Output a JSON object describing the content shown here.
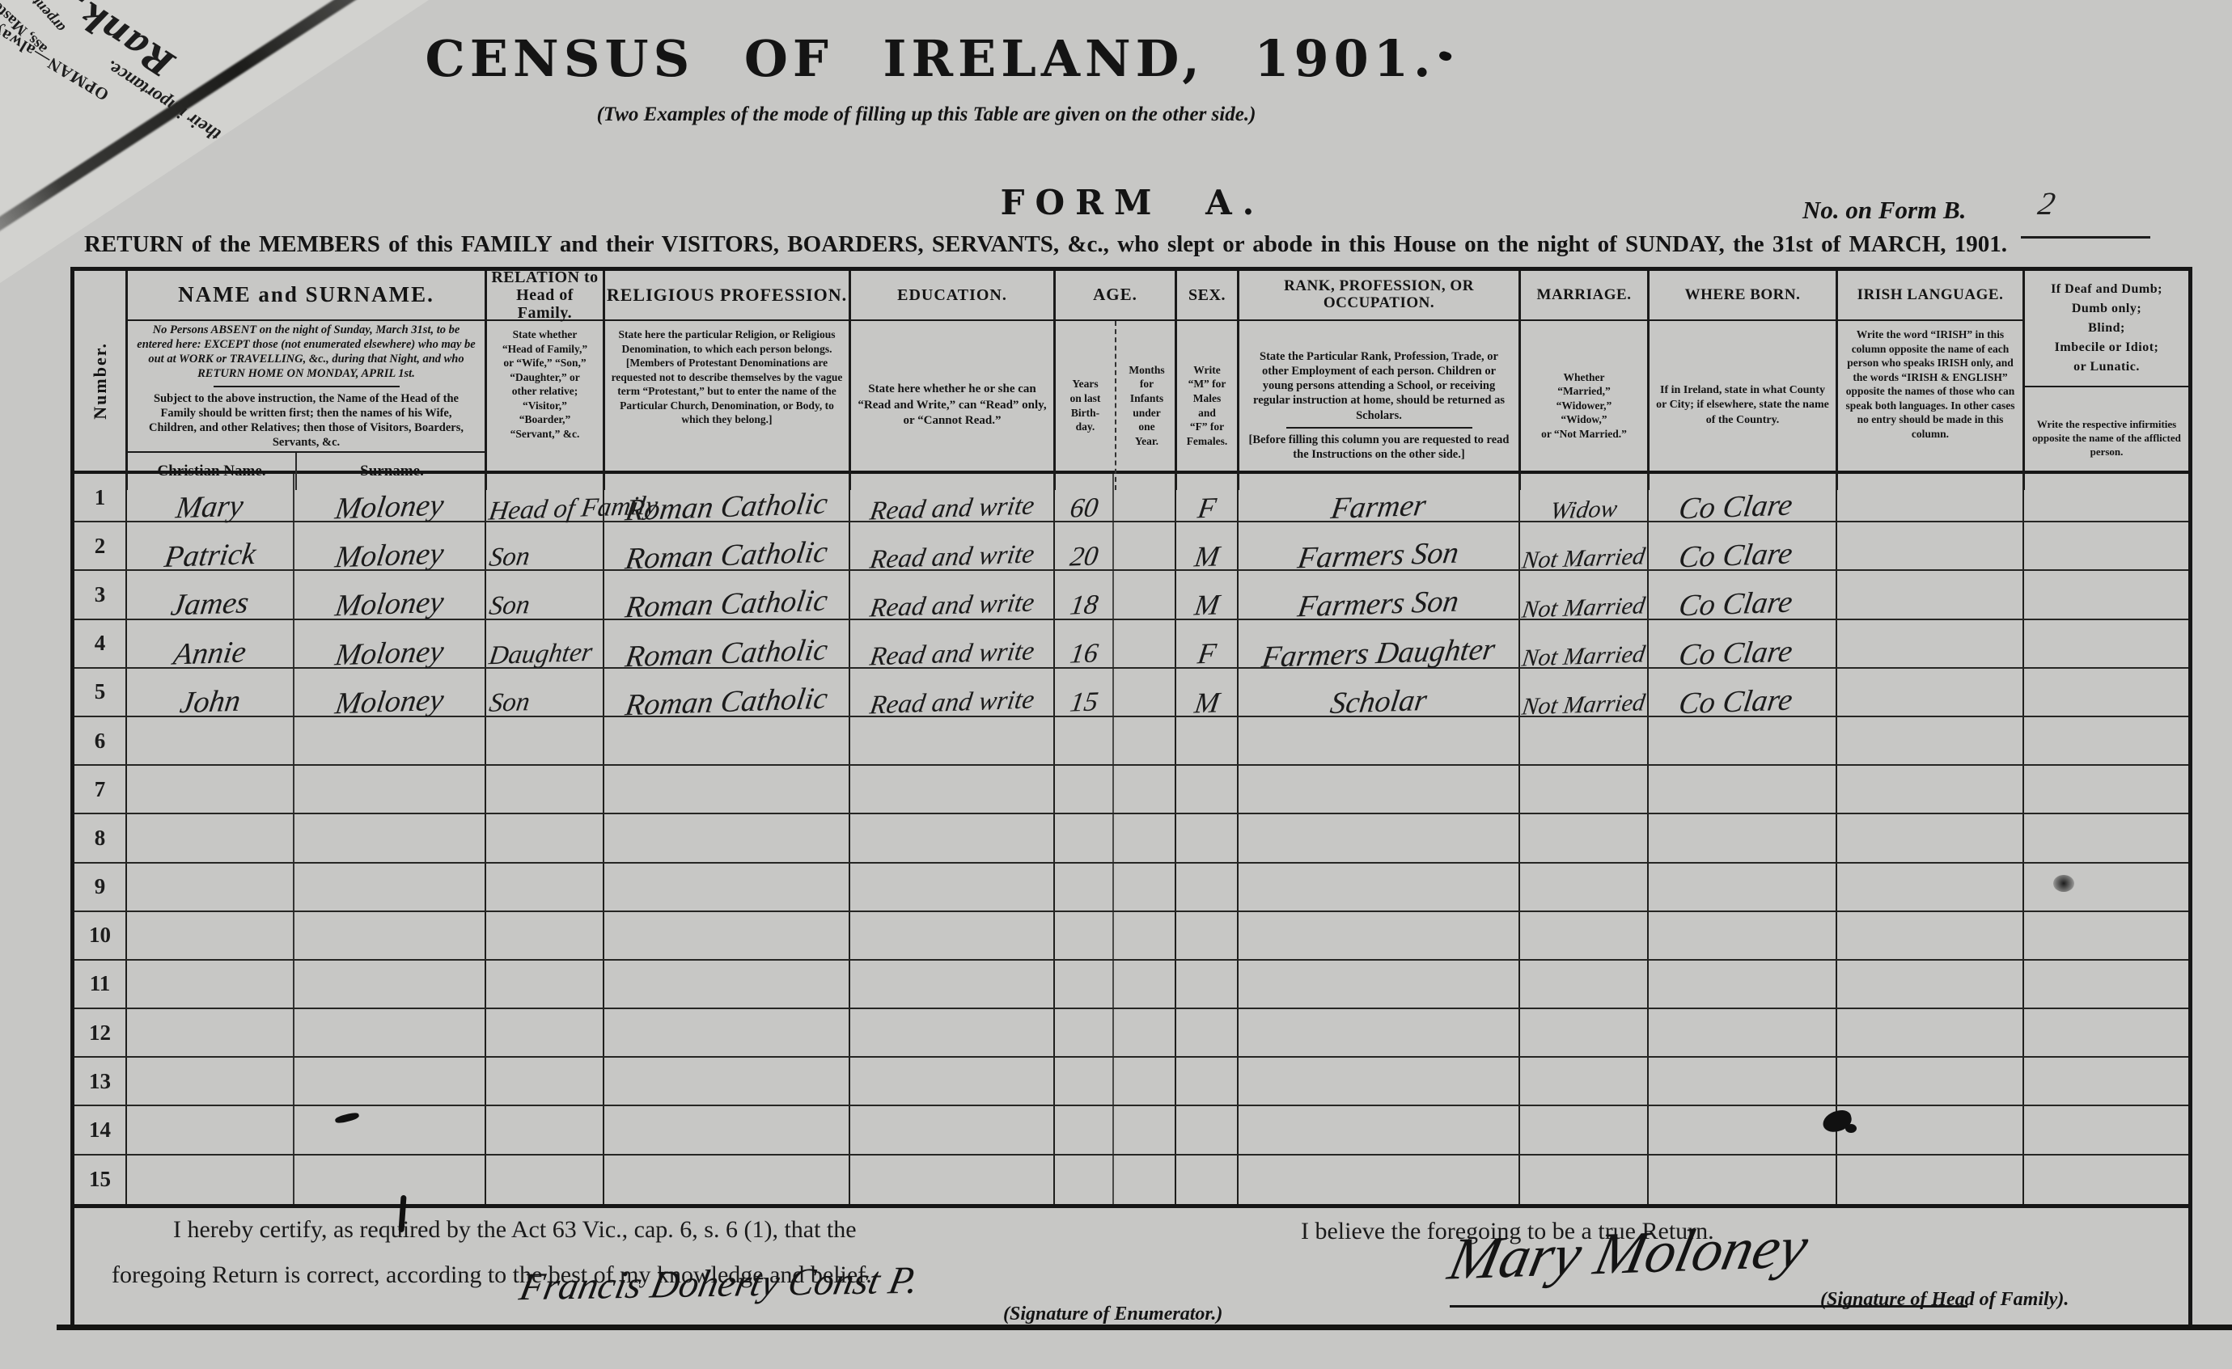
{
  "page": {
    "title": "CENSUS OF IRELAND, 1901.",
    "subtitle": "(Two Examples of the mode of filling up this Table are given on the other side.)",
    "form_label": "FORM A.",
    "form_b_label": "No. on Form B.",
    "form_b_value": "2",
    "return_line": "RETURN of the MEMBERS of this FAMILY and their VISITORS, BOARDERS, SERVANTS, &c., who slept or abode in this House on the night of SUNDAY, the 31st of MARCH, 1901."
  },
  "corner": {
    "fragments": [
      "Rank,",
      "of their importance.",
      "OPMAN—always",
      "ass, Masters",
      "arpenter—"
    ]
  },
  "table": {
    "columns": {
      "number": {
        "title": "Number."
      },
      "name": {
        "title": "NAME and SURNAME.",
        "note1": "No Persons ABSENT on the night of Sunday, March 31st, to be entered here: EXCEPT those (not enumerated elsewhere) who may be out at WORK or TRAVELLING, &c., during that Night, and who RETURN HOME ON MONDAY, APRIL 1st.",
        "note2": "Subject to the above instruction, the Name of the Head of the Family should be written first; then the names of his Wife, Children, and other Relatives; then those of Visitors, Boarders, Servants, &c.",
        "sub1": "Christian Name.",
        "sub2": "Surname."
      },
      "relation": {
        "title": "RELATION to\nHead of Family.",
        "note": "State whether\n“Head of Family,”\nor “Wife,” “Son,”\n“Daughter,” or\nother relative;\n“Visitor,”\n“Boarder,”\n“Servant,” &c."
      },
      "religion": {
        "title": "RELIGIOUS PROFESSION.",
        "note": "State here the particular Religion, or Religious Denomination, to which each person belongs. [Members of Protestant Denominations are requested not to describe themselves by the vague term “Protestant,” but to enter the name of the Particular Church, Denomination, or Body, to which they belong.]"
      },
      "education": {
        "title": "EDUCATION.",
        "note": "State here whether he or she can “Read and Write,” can “Read” only, or “Cannot Read.”"
      },
      "age": {
        "title": "AGE.",
        "sub1": "Years\non last\nBirth-\nday.",
        "sub2": "Months\nfor\nInfants\nunder\none\nYear."
      },
      "sex": {
        "title": "SEX.",
        "note": "Write\n“M” for\nMales\nand\n“F” for\nFemales."
      },
      "rank": {
        "title": "RANK, PROFESSION, OR\nOCCUPATION.",
        "note1": "State the Particular Rank, Profession, Trade, or other Employment of each person. Children or young persons attending a School, or receiving regular instruction at home, should be returned as Scholars.",
        "note2": "[Before filling this column you are requested to read the Instructions on the other side.]"
      },
      "marriage": {
        "title": "MARRIAGE.",
        "note": "Whether\n“Married,”\n“Widower,”\n“Widow,”\nor “Not Married.”"
      },
      "born": {
        "title": "WHERE BORN.",
        "note": "If in Ireland, state in what County or City; if elsewhere, state the name of the Country."
      },
      "irish": {
        "title": "IRISH LANGUAGE.",
        "note": "Write the word “IRISH” in this column opposite the name of each person who speaks IRISH only, and the words “IRISH & ENGLISH” opposite the names of those who can speak both languages. In other cases no entry should be made in this column."
      },
      "infirmity": {
        "title": "If Deaf and Dumb;\nDumb only;\nBlind;\nImbecile or Idiot;\nor Lunatic.",
        "note": "Write the respective infirmities opposite the name of the afflicted person."
      }
    },
    "rows": [
      {
        "num": "1",
        "christian": "Mary",
        "surname": "Moloney",
        "relation": "Head of Family",
        "religion": "Roman Catholic",
        "education": "Read and write",
        "age": "60",
        "sex": "F",
        "occupation": "Farmer",
        "marriage": "Widow",
        "born": "Co Clare"
      },
      {
        "num": "2",
        "christian": "Patrick",
        "surname": "Moloney",
        "relation": "Son",
        "religion": "Roman Catholic",
        "education": "Read and write",
        "age": "20",
        "sex": "M",
        "occupation": "Farmers Son",
        "marriage": "Not Married",
        "born": "Co Clare"
      },
      {
        "num": "3",
        "christian": "James",
        "surname": "Moloney",
        "relation": "Son",
        "religion": "Roman Catholic",
        "education": "Read and write",
        "age": "18",
        "sex": "M",
        "occupation": "Farmers Son",
        "marriage": "Not Married",
        "born": "Co Clare"
      },
      {
        "num": "4",
        "christian": "Annie",
        "surname": "Moloney",
        "relation": "Daughter",
        "religion": "Roman Catholic",
        "education": "Read and write",
        "age": "16",
        "sex": "F",
        "occupation": "Farmers Daughter",
        "marriage": "Not Married",
        "born": "Co Clare"
      },
      {
        "num": "5",
        "christian": "John",
        "surname": "Moloney",
        "relation": "Son",
        "religion": "Roman Catholic",
        "education": "Read and write",
        "age": "15",
        "sex": "M",
        "occupation": "Scholar",
        "marriage": "Not Married",
        "born": "Co Clare"
      },
      {
        "num": "6"
      },
      {
        "num": "7"
      },
      {
        "num": "8"
      },
      {
        "num": "9"
      },
      {
        "num": "10"
      },
      {
        "num": "11"
      },
      {
        "num": "12"
      },
      {
        "num": "13"
      },
      {
        "num": "14"
      },
      {
        "num": "15"
      }
    ]
  },
  "footer": {
    "certify_line1": "I hereby certify, as required by the Act 63 Vic., cap. 6, s. 6 (1), that the",
    "certify_line2": "foregoing Return is correct, according to the best of my knowledge and belief.",
    "enumerator_signature": "Francis Doherty Const P.",
    "enumerator_label": "(Signature of Enumerator.)",
    "believe_line": "I believe the foregoing to be a true Return.",
    "head_signature": "Mary Moloney",
    "head_label": "(Signature of Head of Family)."
  }
}
